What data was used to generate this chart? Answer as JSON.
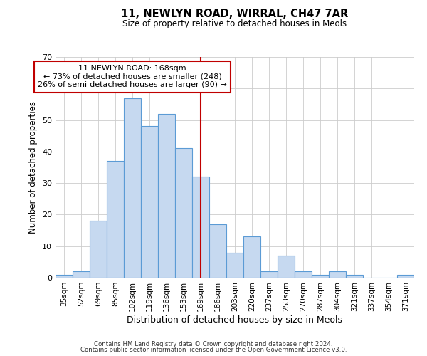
{
  "title": "11, NEWLYN ROAD, WIRRAL, CH47 7AR",
  "subtitle": "Size of property relative to detached houses in Meols",
  "xlabel": "Distribution of detached houses by size in Meols",
  "ylabel": "Number of detached properties",
  "bar_labels": [
    "35sqm",
    "52sqm",
    "69sqm",
    "85sqm",
    "102sqm",
    "119sqm",
    "136sqm",
    "153sqm",
    "169sqm",
    "186sqm",
    "203sqm",
    "220sqm",
    "237sqm",
    "253sqm",
    "270sqm",
    "287sqm",
    "304sqm",
    "321sqm",
    "337sqm",
    "354sqm",
    "371sqm"
  ],
  "bar_values": [
    1,
    2,
    18,
    37,
    57,
    48,
    52,
    41,
    32,
    17,
    8,
    13,
    2,
    7,
    2,
    1,
    2,
    1,
    0,
    0,
    1
  ],
  "bar_color": "#c6d9f0",
  "bar_edge_color": "#5b9bd5",
  "vline_x": 8,
  "vline_color": "#c00000",
  "annotation_title": "11 NEWLYN ROAD: 168sqm",
  "annotation_line1": "← 73% of detached houses are smaller (248)",
  "annotation_line2": "26% of semi-detached houses are larger (90) →",
  "annotation_box_edge_color": "#c00000",
  "annotation_box_face_color": "#ffffff",
  "ylim": [
    0,
    70
  ],
  "yticks": [
    0,
    10,
    20,
    30,
    40,
    50,
    60,
    70
  ],
  "footer1": "Contains HM Land Registry data © Crown copyright and database right 2024.",
  "footer2": "Contains public sector information licensed under the Open Government Licence v3.0.",
  "background_color": "#ffffff",
  "grid_color": "#cccccc"
}
